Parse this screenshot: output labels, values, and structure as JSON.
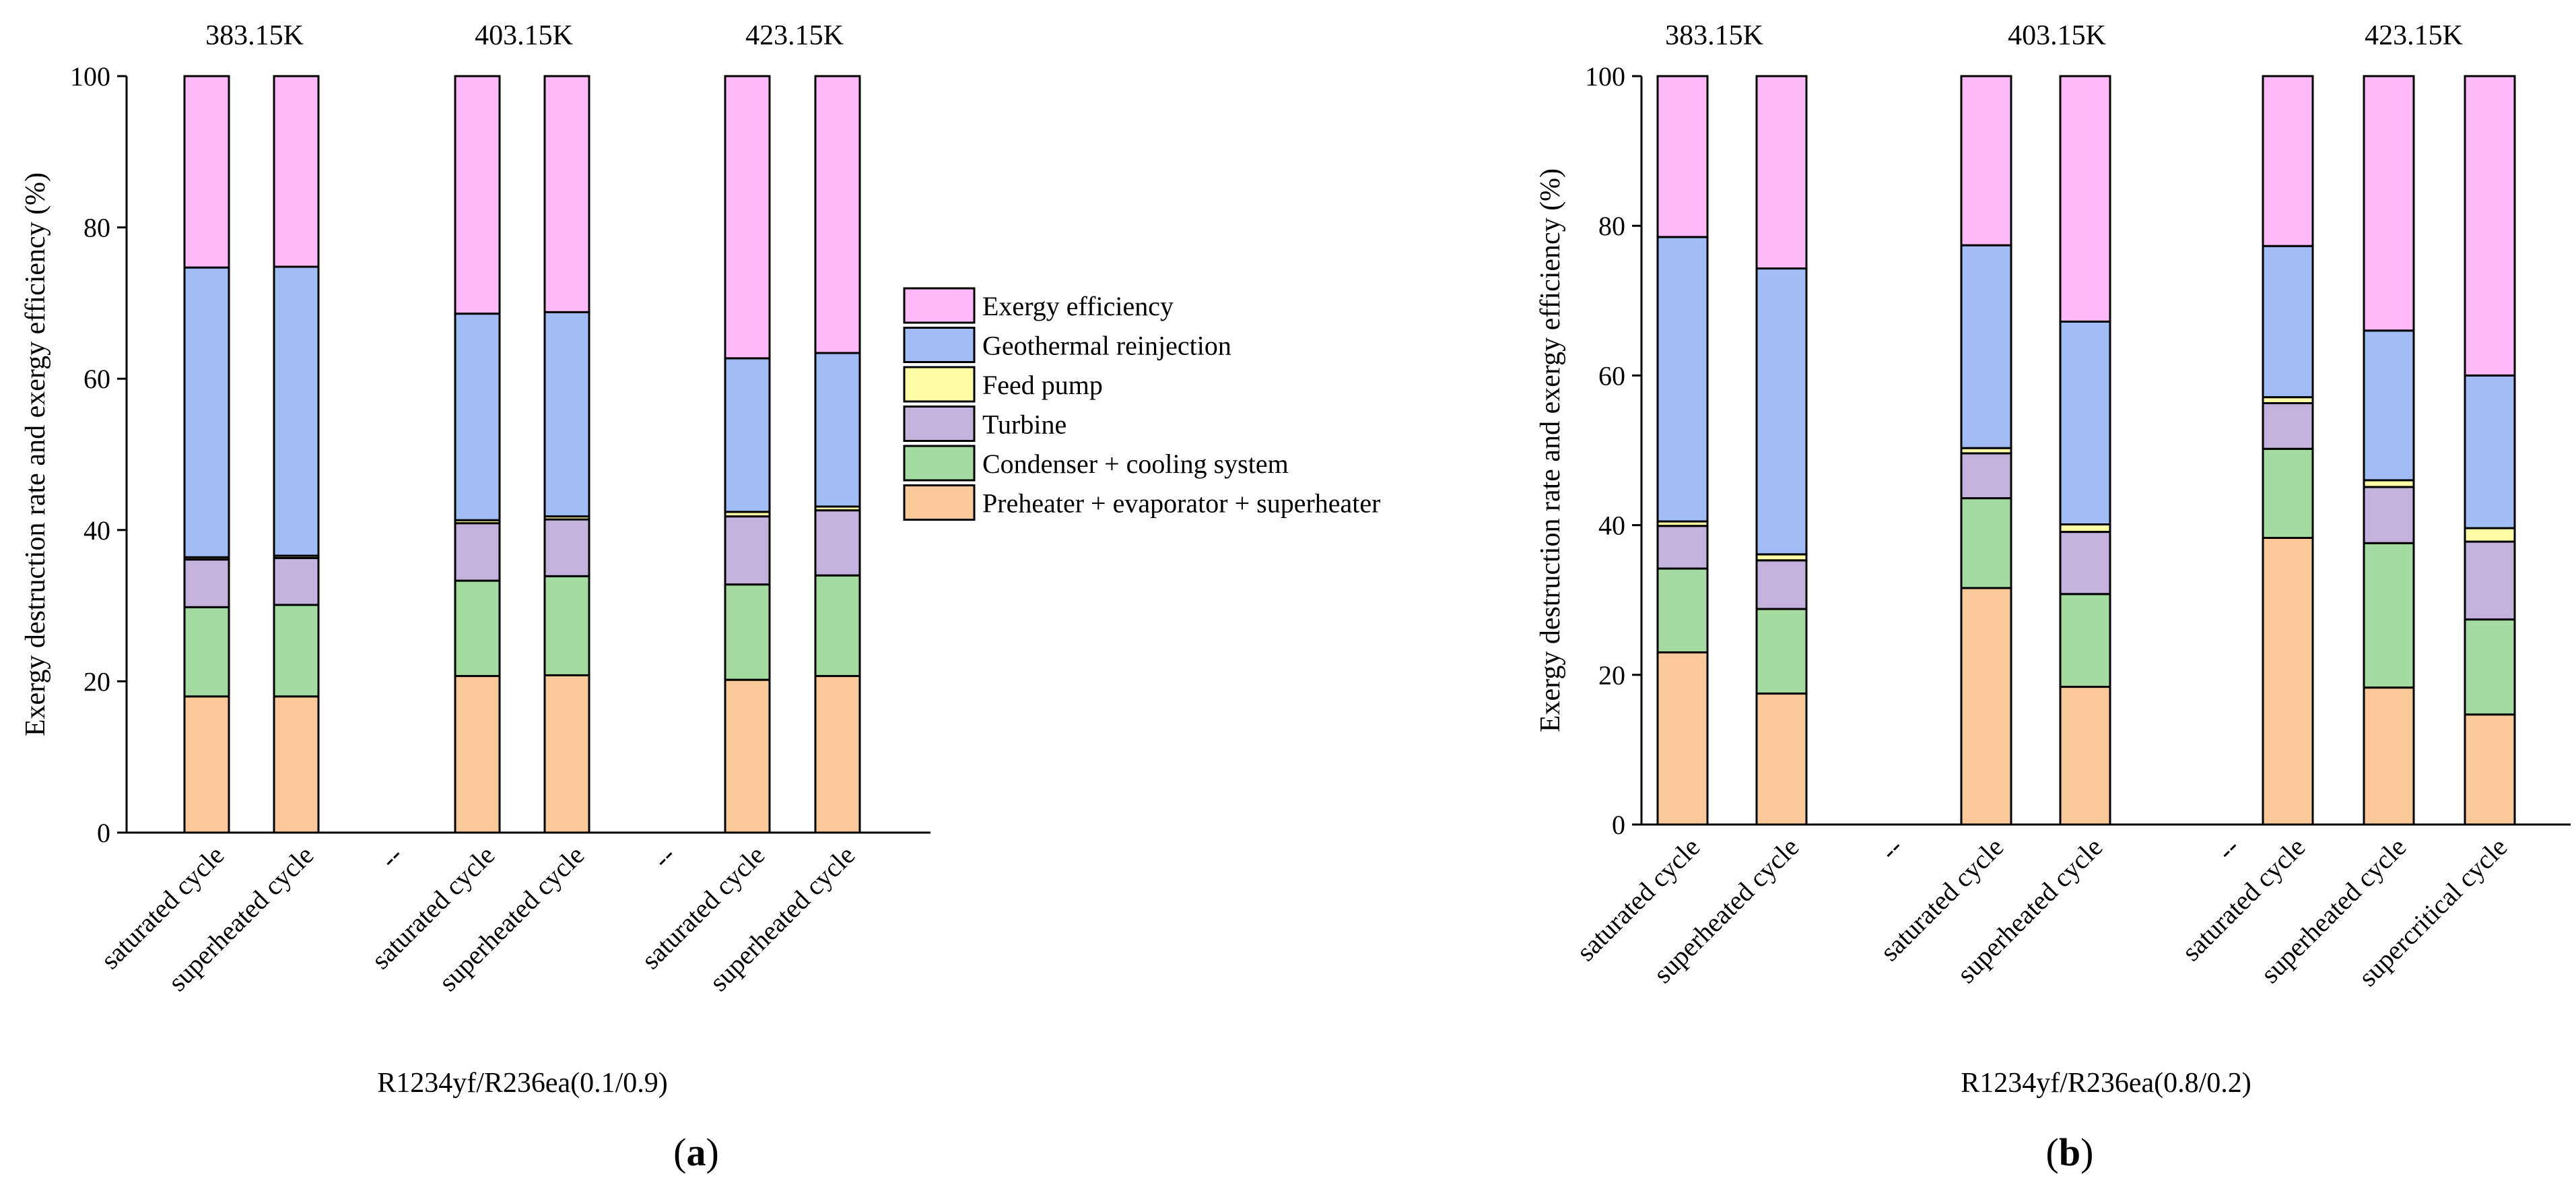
{
  "figure": {
    "legend_items": [
      {
        "label": "Exergy efficiency",
        "color": "#FDB9F8"
      },
      {
        "label": "Geothermal reinjection",
        "color": "#A2BCF5"
      },
      {
        "label": "Feed pump",
        "color": "#FDFDA6"
      },
      {
        "label": "Turbine",
        "color": "#C3B2DB"
      },
      {
        "label": "Condenser + cooling system",
        "color": "#A3DBA0"
      },
      {
        "label": "Preheater + evaporator + superheater",
        "color": "#F9C999"
      }
    ]
  },
  "chart_data": [
    {
      "type": "bar",
      "stacked": true,
      "panel_label_text": "a",
      "title": "R1234yf/R236ea(0.1/0.9)",
      "xlabel": "R1234yf/R236ea(0.1/0.9)",
      "ylabel": "Exergy destruction rate and exergy efficiency (%)",
      "ylim": [
        0,
        100
      ],
      "yticks": [
        "0",
        "20",
        "40",
        "60",
        "80",
        "100"
      ],
      "grid": false,
      "legend_position": "right",
      "group_labels": [
        "383.15K",
        "403.15K",
        "423.15K"
      ],
      "categories": [
        "saturated cycle",
        "superheated cycle",
        "--",
        "saturated cycle",
        "superheated cycle",
        "--",
        "saturated cycle",
        "superheated cycle"
      ],
      "series": [
        {
          "name": "Preheater + evaporator + superheater",
          "values": [
            18.0,
            18.0,
            null,
            20.7,
            20.8,
            null,
            20.2,
            20.7
          ]
        },
        {
          "name": "Condenser + cooling system",
          "values": [
            11.8,
            12.1,
            null,
            12.6,
            13.1,
            null,
            12.6,
            13.3
          ]
        },
        {
          "name": "Turbine",
          "values": [
            6.3,
            6.2,
            null,
            7.6,
            7.5,
            null,
            9.0,
            8.6
          ]
        },
        {
          "name": "Feed pump",
          "values": [
            0.3,
            0.3,
            null,
            0.4,
            0.4,
            null,
            0.6,
            0.5
          ]
        },
        {
          "name": "Geothermal reinjection",
          "values": [
            38.3,
            38.2,
            null,
            27.3,
            27.0,
            null,
            20.3,
            20.3
          ]
        },
        {
          "name": "Exergy efficiency",
          "values": [
            25.3,
            25.2,
            null,
            31.4,
            31.2,
            null,
            37.3,
            36.6
          ]
        }
      ]
    },
    {
      "type": "bar",
      "stacked": true,
      "panel_label_text": "b",
      "title": "R1234yf/R236ea(0.8/0.2)",
      "xlabel": "R1234yf/R236ea(0.8/0.2)",
      "ylabel": "Exergy destruction rate and exergy efficiency (%)",
      "ylim": [
        0,
        100
      ],
      "yticks": [
        "0",
        "20",
        "40",
        "60",
        "80",
        "100"
      ],
      "grid": false,
      "legend_position": "none",
      "group_labels": [
        "383.15K",
        "403.15K",
        "423.15K"
      ],
      "categories": [
        "saturated cycle",
        "superheated cycle",
        "--",
        "saturated cycle",
        "superheated cycle",
        "--",
        "saturated cycle",
        "superheated cycle",
        "supercritical cycle"
      ],
      "series": [
        {
          "name": "Preheater + evaporator + superheater",
          "values": [
            23.0,
            17.5,
            null,
            31.6,
            18.4,
            null,
            38.3,
            18.3,
            14.7
          ]
        },
        {
          "name": "Condenser + cooling system",
          "values": [
            11.2,
            11.3,
            null,
            12.0,
            12.4,
            null,
            11.9,
            19.3,
            12.7
          ]
        },
        {
          "name": "Turbine",
          "values": [
            5.7,
            6.5,
            null,
            6.0,
            8.3,
            null,
            6.1,
            7.5,
            10.4
          ]
        },
        {
          "name": "Feed pump",
          "values": [
            0.6,
            0.8,
            null,
            0.7,
            1.0,
            null,
            0.8,
            0.9,
            1.8
          ]
        },
        {
          "name": "Geothermal reinjection",
          "values": [
            38.0,
            38.2,
            null,
            27.1,
            27.1,
            null,
            20.2,
            20.0,
            20.4
          ]
        },
        {
          "name": "Exergy efficiency",
          "values": [
            21.5,
            25.7,
            null,
            22.6,
            32.8,
            null,
            22.7,
            34.0,
            40.0
          ]
        }
      ]
    }
  ]
}
